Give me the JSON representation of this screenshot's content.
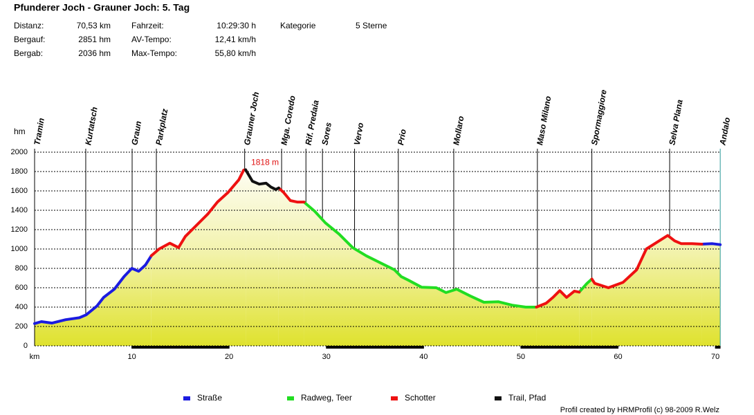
{
  "chart_data": {
    "type": "line",
    "title": "Pfunderer Joch - Grauner Joch: 5. Tag",
    "stats": [
      [
        {
          "label": "Distanz:",
          "value": "70,53 km"
        },
        {
          "label": "Fahrzeit:",
          "value": "10:29:30 h"
        },
        {
          "label": "Kategorie",
          "value": "5 Sterne"
        }
      ],
      [
        {
          "label": "Bergauf:",
          "value": "2851 hm"
        },
        {
          "label": "AV-Tempo:",
          "value": "12,41 km/h"
        }
      ],
      [
        {
          "label": "Bergab:",
          "value": "2036 hm"
        },
        {
          "label": "Max-Tempo:",
          "value": "55,80 km/h"
        }
      ]
    ],
    "y_label": "hm",
    "x_label": "km",
    "annotation": "1818 m",
    "credit": "Profil created by HRMProfil (c) 98-2009 R.Welz",
    "xlim": [
      0,
      70.53
    ],
    "xticks": [
      10,
      20,
      30,
      40,
      50,
      60,
      70
    ],
    "ylim": [
      0,
      2000
    ],
    "yticks": [
      0,
      200,
      400,
      600,
      800,
      1000,
      1200,
      1400,
      1600,
      1800,
      2000
    ],
    "grid": true,
    "waypoints": [
      {
        "name": "Tramin",
        "x": 0
      },
      {
        "name": "Kurtatsch",
        "x": 5.26
      },
      {
        "name": "Graun",
        "x": 10.03
      },
      {
        "name": "Parkplatz",
        "x": 12.52
      },
      {
        "name": "Grauner Joch",
        "x": 21.6
      },
      {
        "name": "Mga. Coredo",
        "x": 25.4
      },
      {
        "name": "Rif. Predaia",
        "x": 27.9
      },
      {
        "name": "Sores",
        "x": 29.6
      },
      {
        "name": "Vervo",
        "x": 32.9
      },
      {
        "name": "Prio",
        "x": 37.4
      },
      {
        "name": "Mollaro",
        "x": 43.1
      },
      {
        "name": "Maso Milano",
        "x": 51.7
      },
      {
        "name": "Spormaggiore",
        "x": 57.3
      },
      {
        "name": "Selva Plana",
        "x": 65.3
      },
      {
        "name": "Andalo",
        "x": 70.5
      }
    ],
    "x": [
      0,
      0.7,
      1.8,
      3.2,
      4.6,
      5.3,
      6.4,
      7.1,
      8.2,
      9.2,
      10,
      10.7,
      11.4,
      12,
      12.8,
      13.9,
      14.8,
      15.5,
      16.7,
      17.8,
      18.8,
      19.9,
      21,
      21.5,
      21.7,
      22.4,
      23.1,
      23.8,
      24.3,
      24.8,
      25.1,
      25.6,
      26.3,
      27,
      27.7,
      28.8,
      29.9,
      31.3,
      32.7,
      34.1,
      35.6,
      37,
      37.7,
      38.4,
      39.8,
      41.3,
      42.3,
      43.4,
      44.8,
      46.2,
      47.7,
      49.1,
      50.5,
      51.6,
      52.6,
      53.3,
      54,
      54.7,
      55.5,
      56,
      56.8,
      57.3,
      57.6,
      59,
      60.5,
      61.9,
      62.9,
      64,
      65.1,
      65.8,
      66.5,
      67.6,
      68.6,
      69.7,
      70.5
    ],
    "series": [
      {
        "name": "Straße",
        "color": "#1c1ce0",
        "values": [
          230,
          250,
          235,
          270,
          290,
          320,
          410,
          500,
          585,
          715,
          800,
          770,
          835,
          930,
          null,
          null,
          null,
          null,
          null,
          null,
          null,
          null,
          null,
          null,
          null,
          null,
          null,
          null,
          null,
          null,
          null,
          null,
          null,
          null,
          null,
          null,
          null,
          null,
          null,
          null,
          null,
          null,
          null,
          null,
          null,
          null,
          null,
          null,
          null,
          null,
          null,
          null,
          null,
          null,
          null,
          null,
          null,
          null,
          null,
          null,
          null,
          null,
          null,
          null,
          null,
          null,
          null,
          null,
          null,
          null,
          null,
          null,
          1050,
          1055,
          1045
        ]
      },
      {
        "name": "Radweg, Teer",
        "color": "#22dd22",
        "values": [
          null,
          null,
          null,
          null,
          null,
          null,
          null,
          null,
          null,
          null,
          null,
          null,
          null,
          null,
          null,
          null,
          null,
          null,
          null,
          null,
          null,
          null,
          null,
          null,
          null,
          null,
          null,
          null,
          null,
          null,
          null,
          null,
          null,
          null,
          1485,
          1390,
          1270,
          1155,
          1015,
          930,
          855,
          785,
          715,
          680,
          605,
          600,
          550,
          585,
          515,
          450,
          455,
          420,
          400,
          400,
          null,
          null,
          null,
          null,
          null,
          555,
          645,
          690,
          null,
          null,
          null,
          null,
          null,
          null,
          null,
          null,
          null,
          null,
          null,
          null,
          null
        ]
      },
      {
        "name": "Schotter",
        "color": "#ee1111",
        "values": [
          null,
          null,
          null,
          null,
          null,
          null,
          null,
          null,
          null,
          null,
          null,
          null,
          null,
          930,
          1000,
          1060,
          1015,
          1130,
          1250,
          1360,
          1485,
          1585,
          1715,
          1815,
          1818,
          null,
          null,
          null,
          null,
          null,
          1630,
          1585,
          1500,
          1485,
          1485,
          null,
          null,
          null,
          null,
          null,
          null,
          null,
          null,
          null,
          null,
          null,
          null,
          null,
          null,
          null,
          null,
          null,
          null,
          400,
          440,
          500,
          570,
          500,
          565,
          555,
          null,
          690,
          645,
          600,
          655,
          785,
          1000,
          1070,
          1140,
          1085,
          1055,
          1055,
          1050,
          null,
          null
        ]
      },
      {
        "name": "Trail, Pfad",
        "color": "#111111",
        "values": [
          null,
          null,
          null,
          null,
          null,
          null,
          null,
          null,
          null,
          null,
          null,
          null,
          null,
          null,
          null,
          null,
          null,
          null,
          null,
          null,
          null,
          null,
          null,
          null,
          1818,
          1700,
          1670,
          1680,
          1640,
          1615,
          1630,
          null,
          null,
          null,
          null,
          null,
          null,
          null,
          null,
          null,
          null,
          null,
          null,
          null,
          null,
          null,
          null,
          null,
          null,
          null,
          null,
          null,
          null,
          null,
          null,
          null,
          null,
          null,
          null,
          null,
          null,
          null,
          null,
          null,
          null,
          null,
          null,
          null,
          null,
          null,
          null,
          null,
          null,
          null,
          null
        ]
      }
    ]
  }
}
